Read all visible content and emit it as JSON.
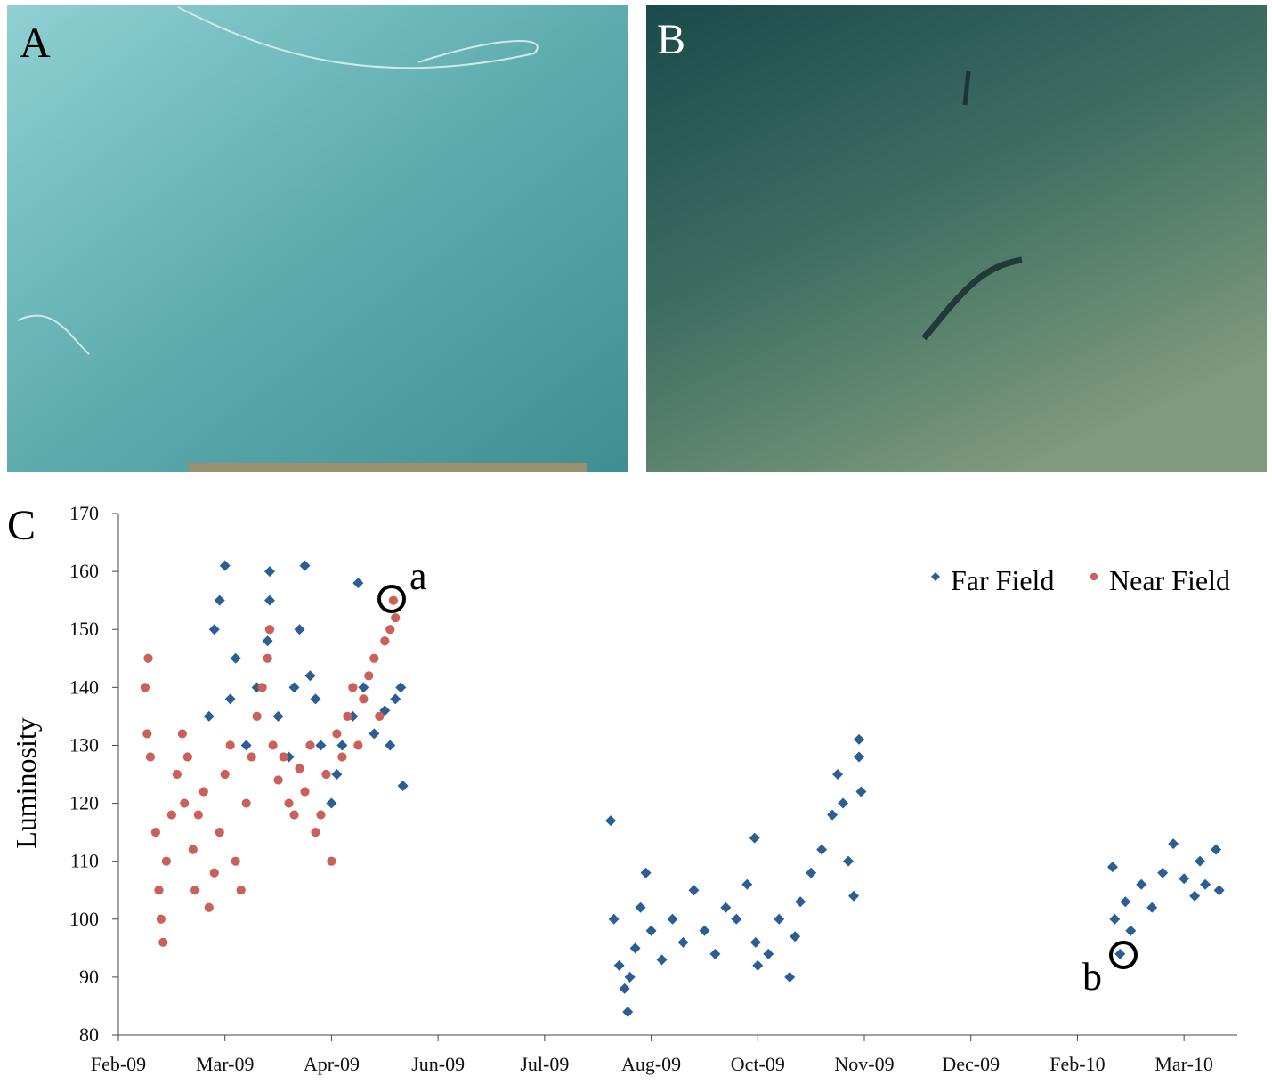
{
  "panel_labels": [
    "A",
    "B",
    "C"
  ],
  "chart_data": {
    "type": "scatter",
    "y_label": "Luminosity",
    "xlim": [
      0,
      10.5
    ],
    "xticks": [
      {
        "value": 0,
        "label": "Feb-09"
      },
      {
        "value": 1,
        "label": "Mar-09"
      },
      {
        "value": 2,
        "label": "Apr-09"
      },
      {
        "value": 3,
        "label": "Jun-09"
      },
      {
        "value": 4,
        "label": "Jul-09"
      },
      {
        "value": 5,
        "label": "Aug-09"
      },
      {
        "value": 6,
        "label": "Oct-09"
      },
      {
        "value": 7,
        "label": "Nov-09"
      },
      {
        "value": 8,
        "label": "Dec-09"
      },
      {
        "value": 9,
        "label": "Feb-10"
      },
      {
        "value": 10,
        "label": "Mar-10"
      }
    ],
    "ylim": [
      80,
      170
    ],
    "yticks": [
      80,
      90,
      100,
      110,
      120,
      130,
      140,
      150,
      160,
      170
    ],
    "legend": "upper right",
    "annotations": [
      "a",
      "b"
    ],
    "series": [
      {
        "name": "Far Field",
        "color": "#2b5f93",
        "marker": "diamond",
        "x": [
          0.85,
          0.9,
          0.95,
          1.0,
          1.05,
          1.1,
          1.2,
          1.3,
          1.4,
          1.42,
          1.42,
          1.5,
          1.6,
          1.65,
          1.7,
          1.75,
          1.8,
          1.85,
          1.9,
          2.0,
          2.05,
          2.1,
          2.2,
          2.25,
          2.3,
          2.4,
          2.5,
          2.55,
          2.6,
          2.65,
          2.67,
          4.62,
          4.65,
          4.7,
          4.75,
          4.78,
          4.8,
          4.85,
          4.9,
          4.95,
          5.0,
          5.1,
          5.2,
          5.3,
          5.4,
          5.5,
          5.6,
          5.7,
          5.8,
          5.9,
          5.97,
          5.98,
          6.0,
          6.1,
          6.2,
          6.3,
          6.35,
          6.4,
          6.5,
          6.6,
          6.7,
          6.75,
          6.8,
          6.85,
          6.9,
          6.95,
          6.95,
          6.97,
          9.33,
          9.35,
          9.4,
          9.45,
          9.5,
          9.6,
          9.7,
          9.8,
          9.9,
          10.0,
          10.1,
          10.15,
          10.2,
          10.3,
          10.33
        ],
        "values": [
          135,
          150,
          155,
          161,
          138,
          145,
          130,
          140,
          148,
          160,
          155,
          135,
          128,
          140,
          150,
          161,
          142,
          138,
          130,
          120,
          125,
          130,
          135,
          158,
          140,
          132,
          136,
          130,
          138,
          140,
          123,
          117,
          100,
          92,
          88,
          84,
          90,
          95,
          102,
          108,
          98,
          93,
          100,
          96,
          105,
          98,
          94,
          102,
          100,
          106,
          114,
          96,
          92,
          94,
          100,
          90,
          97,
          103,
          108,
          112,
          118,
          125,
          120,
          110,
          104,
          128,
          131,
          122,
          109,
          100,
          94,
          103,
          98,
          106,
          102,
          108,
          113,
          107,
          104,
          110,
          106,
          112,
          105
        ]
      },
      {
        "name": "Near Field",
        "color": "#c9605a",
        "marker": "circle",
        "x": [
          0.25,
          0.27,
          0.3,
          0.28,
          0.35,
          0.38,
          0.4,
          0.42,
          0.45,
          0.5,
          0.55,
          0.6,
          0.62,
          0.65,
          0.7,
          0.72,
          0.75,
          0.8,
          0.85,
          0.9,
          0.95,
          1.0,
          1.05,
          1.1,
          1.15,
          1.2,
          1.25,
          1.3,
          1.35,
          1.4,
          1.42,
          1.45,
          1.5,
          1.55,
          1.6,
          1.65,
          1.7,
          1.75,
          1.8,
          1.85,
          1.9,
          1.95,
          2.0,
          2.05,
          2.1,
          2.15,
          2.2,
          2.25,
          2.3,
          2.35,
          2.4,
          2.45,
          2.5,
          2.55,
          2.58,
          2.6
        ],
        "values": [
          140,
          132,
          128,
          145,
          115,
          105,
          100,
          96,
          110,
          118,
          125,
          132,
          120,
          128,
          112,
          105,
          118,
          122,
          102,
          108,
          115,
          125,
          130,
          110,
          105,
          120,
          128,
          135,
          140,
          145,
          150,
          130,
          124,
          128,
          120,
          118,
          126,
          122,
          130,
          115,
          118,
          125,
          110,
          132,
          128,
          135,
          140,
          130,
          138,
          142,
          145,
          135,
          148,
          150,
          155,
          152
        ]
      }
    ]
  }
}
